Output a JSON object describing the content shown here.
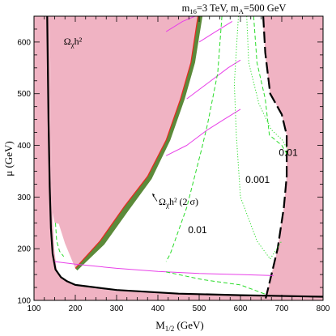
{
  "chart_data": {
    "type": "line",
    "title": "m₁₆=3 TeV,  mₐ=500 GeV",
    "title_main": "m",
    "title_sub1": "16",
    "title_mid": "=3 TeV,  m",
    "title_sub2": "A",
    "title_end": "=500 GeV",
    "xlabel": "M",
    "xlabel_sub": "1/2",
    "xlabel_unit": "  (GeV)",
    "ylabel": "μ (GeV)",
    "xlim": [
      100,
      800
    ],
    "ylim": [
      100,
      650
    ],
    "xticks": [
      "100",
      "200",
      "300",
      "400",
      "500",
      "600",
      "700",
      "800"
    ],
    "yticks": [
      "100",
      "200",
      "300",
      "400",
      "500",
      "600"
    ],
    "grid": false,
    "colors": {
      "excluded_fill": "#f0b3c3",
      "band_fill": "#5b8a3a",
      "band_edge": "#e8281f",
      "magenta": "#e840e8",
      "green_dash": "#2adc2a",
      "boundary": "#000000"
    },
    "annotations": {
      "region_label_main": "Ω",
      "region_label_sub": "χ",
      "region_label_end": "h²",
      "band_label_main": "Ω",
      "band_label_sub": "χ",
      "band_label_end": "h² (2 σ)",
      "contour_001": "0.01",
      "contour_0001": "0.001",
      "contour_001_lower": "0.01"
    },
    "series": [
      {
        "id": "excluded_left",
        "style": "region",
        "points": [
          [
            100,
            100
          ],
          [
            100,
            650
          ],
          [
            138,
            650
          ],
          [
            140,
            520
          ],
          [
            142,
            360
          ],
          [
            145,
            270
          ],
          [
            149,
            200
          ],
          [
            155,
            160
          ],
          [
            170,
            140
          ],
          [
            200,
            128
          ],
          [
            300,
            118
          ],
          [
            450,
            112
          ],
          [
            660,
            108
          ],
          [
            800,
            107
          ],
          [
            800,
            100
          ]
        ]
      },
      {
        "id": "excluded_right",
        "style": "region",
        "points": [
          [
            653,
            650
          ],
          [
            800,
            650
          ],
          [
            800,
            100
          ],
          [
            660,
            100
          ],
          [
            690,
            200
          ],
          [
            705,
            280
          ],
          [
            712,
            340
          ],
          [
            712,
            420
          ],
          [
            700,
            460
          ],
          [
            672,
            500
          ],
          [
            662,
            560
          ],
          [
            656,
            620
          ]
        ]
      },
      {
        "id": "excluded_wedge",
        "style": "region",
        "points": [
          [
            150,
            250
          ],
          [
            160,
            248
          ],
          [
            175,
            210
          ],
          [
            200,
            162
          ],
          [
            260,
            215
          ],
          [
            320,
            283
          ],
          [
            375,
            340
          ],
          [
            420,
            410
          ],
          [
            455,
            490
          ],
          [
            480,
            560
          ],
          [
            497,
            650
          ],
          [
            138,
            650
          ],
          [
            140,
            520
          ],
          [
            142,
            360
          ],
          [
            145,
            270
          ]
        ]
      },
      {
        "id": "omega_band",
        "style": "band",
        "upper": [
          [
            200,
            162
          ],
          [
            260,
            215
          ],
          [
            320,
            283
          ],
          [
            375,
            340
          ],
          [
            420,
            410
          ],
          [
            455,
            490
          ],
          [
            480,
            560
          ],
          [
            497,
            650
          ]
        ],
        "lower": [
          [
            508,
            650
          ],
          [
            490,
            560
          ],
          [
            465,
            490
          ],
          [
            430,
            410
          ],
          [
            385,
            335
          ],
          [
            330,
            275
          ],
          [
            270,
            208
          ],
          [
            205,
            158
          ]
        ]
      },
      {
        "id": "lower_boundary",
        "style": "solid",
        "points": [
          [
            132,
            650
          ],
          [
            135,
            450
          ],
          [
            138,
            320
          ],
          [
            141,
            240
          ],
          [
            145,
            190
          ],
          [
            152,
            160
          ],
          [
            165,
            145
          ],
          [
            180,
            137
          ],
          [
            200,
            130
          ],
          [
            300,
            120
          ],
          [
            450,
            113
          ],
          [
            600,
            110
          ],
          [
            800,
            107
          ]
        ]
      },
      {
        "id": "right_boundary",
        "style": "longdash",
        "points": [
          [
            655,
            650
          ],
          [
            660,
            580
          ],
          [
            672,
            500
          ],
          [
            700,
            460
          ],
          [
            712,
            420
          ],
          [
            712,
            340
          ],
          [
            705,
            280
          ],
          [
            690,
            200
          ],
          [
            675,
            150
          ],
          [
            660,
            100
          ]
        ]
      },
      {
        "id": "magenta_bottom",
        "style": "thin",
        "points": [
          [
            150,
            175
          ],
          [
            200,
            170
          ],
          [
            300,
            162
          ],
          [
            400,
            156
          ],
          [
            500,
            152
          ],
          [
            600,
            150
          ],
          [
            680,
            148
          ]
        ]
      },
      {
        "id": "magenta_1",
        "style": "thin",
        "points": [
          [
            420,
            380
          ],
          [
            470,
            400
          ],
          [
            520,
            430
          ],
          [
            560,
            450
          ],
          [
            600,
            470
          ]
        ]
      },
      {
        "id": "magenta_2",
        "style": "thin",
        "points": [
          [
            470,
            490
          ],
          [
            520,
            520
          ],
          [
            570,
            550
          ],
          [
            600,
            565
          ]
        ]
      },
      {
        "id": "magenta_3",
        "style": "thin",
        "points": [
          [
            500,
            600
          ],
          [
            540,
            620
          ],
          [
            580,
            640
          ]
        ]
      },
      {
        "id": "magenta_4",
        "style": "thin",
        "points": [
          [
            420,
            620
          ],
          [
            460,
            640
          ],
          [
            490,
            650
          ]
        ]
      },
      {
        "id": "green_dashed_001",
        "style": "dashed",
        "points": [
          [
            555,
            650
          ],
          [
            545,
            540
          ],
          [
            520,
            440
          ],
          [
            505,
            390
          ],
          [
            470,
            280
          ],
          [
            430,
            190
          ],
          [
            420,
            175
          ]
        ]
      },
      {
        "id": "green_dashed_bottom",
        "style": "dashed",
        "points": [
          [
            420,
            155
          ],
          [
            510,
            140
          ],
          [
            600,
            130
          ],
          [
            660,
            112
          ]
        ]
      },
      {
        "id": "green_dotted_0001",
        "style": "dotted",
        "points": [
          [
            595,
            650
          ],
          [
            585,
            520
          ],
          [
            590,
            420
          ],
          [
            600,
            300
          ],
          [
            640,
            215
          ],
          [
            672,
            180
          ],
          [
            700,
            215
          ]
        ]
      },
      {
        "id": "green_dashed_right",
        "style": "dashed",
        "points": [
          [
            632,
            650
          ],
          [
            640,
            560
          ],
          [
            660,
            490
          ],
          [
            670,
            420
          ],
          [
            700,
            400
          ],
          [
            715,
            380
          ]
        ]
      },
      {
        "id": "green_dotted_right",
        "style": "dotted",
        "points": [
          [
            615,
            650
          ],
          [
            620,
            560
          ],
          [
            645,
            480
          ],
          [
            675,
            430
          ],
          [
            702,
            410
          ],
          [
            715,
            390
          ]
        ]
      },
      {
        "id": "green_left_small",
        "style": "dashed",
        "points": [
          [
            152,
            250
          ],
          [
            155,
            215
          ],
          [
            162,
            195
          ],
          [
            172,
            185
          ]
        ]
      }
    ]
  }
}
